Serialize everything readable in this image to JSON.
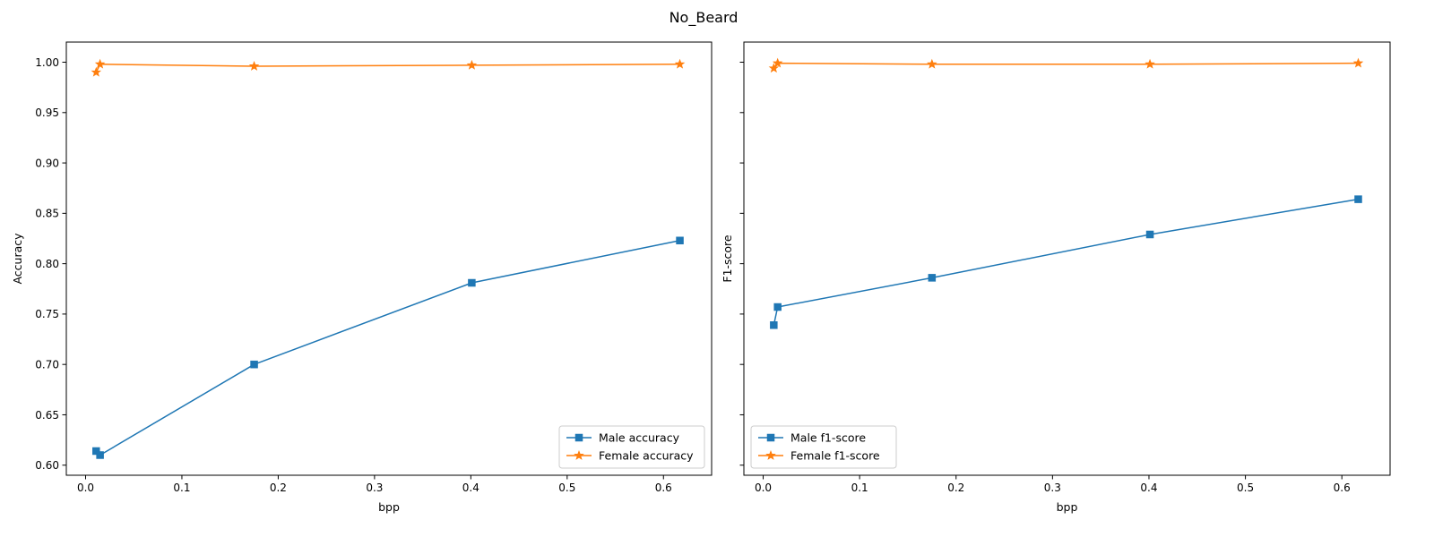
{
  "figure": {
    "title": "No_Beard"
  },
  "chart_data": [
    {
      "type": "line",
      "title": "",
      "xlabel": "bpp",
      "ylabel": "Accuracy",
      "xlim": [
        -0.02,
        0.65
      ],
      "ylim": [
        0.59,
        1.02
      ],
      "xticks": [
        0.0,
        0.1,
        0.2,
        0.3,
        0.4,
        0.5,
        0.6
      ],
      "yticks": [
        0.6,
        0.65,
        0.7,
        0.75,
        0.8,
        0.85,
        0.9,
        0.95,
        1.0
      ],
      "xtick_labels": [
        "0.0",
        "0.1",
        "0.2",
        "0.3",
        "0.4",
        "0.5",
        "0.6"
      ],
      "ytick_labels": [
        "0.60",
        "0.65",
        "0.70",
        "0.75",
        "0.80",
        "0.85",
        "0.90",
        "0.95",
        "1.00"
      ],
      "show_yticklabels": true,
      "grid": false,
      "legend_position": "lower-right",
      "series": [
        {
          "name": "Male accuracy",
          "marker": "square",
          "color": "#1f77b4",
          "x": [
            0.011,
            0.015,
            0.175,
            0.401,
            0.617
          ],
          "y": [
            0.614,
            0.61,
            0.7,
            0.781,
            0.823
          ]
        },
        {
          "name": "Female accuracy",
          "marker": "star",
          "color": "#ff7f0e",
          "x": [
            0.011,
            0.015,
            0.175,
            0.401,
            0.617
          ],
          "y": [
            0.99,
            0.998,
            0.996,
            0.997,
            0.998
          ]
        }
      ]
    },
    {
      "type": "line",
      "title": "",
      "xlabel": "bpp",
      "ylabel": "F1-score",
      "xlim": [
        -0.02,
        0.65
      ],
      "ylim": [
        0.59,
        1.02
      ],
      "xticks": [
        0.0,
        0.1,
        0.2,
        0.3,
        0.4,
        0.5,
        0.6
      ],
      "yticks": [
        0.6,
        0.65,
        0.7,
        0.75,
        0.8,
        0.85,
        0.9,
        0.95,
        1.0
      ],
      "xtick_labels": [
        "0.0",
        "0.1",
        "0.2",
        "0.3",
        "0.4",
        "0.5",
        "0.6"
      ],
      "ytick_labels": [
        "0.60",
        "0.65",
        "0.70",
        "0.75",
        "0.80",
        "0.85",
        "0.90",
        "0.95",
        "1.00"
      ],
      "show_yticklabels": false,
      "grid": false,
      "legend_position": "lower-left",
      "series": [
        {
          "name": "Male f1-score",
          "marker": "square",
          "color": "#1f77b4",
          "x": [
            0.011,
            0.015,
            0.175,
            0.401,
            0.617
          ],
          "y": [
            0.739,
            0.757,
            0.786,
            0.829,
            0.864
          ]
        },
        {
          "name": "Female f1-score",
          "marker": "star",
          "color": "#ff7f0e",
          "x": [
            0.011,
            0.015,
            0.175,
            0.401,
            0.617
          ],
          "y": [
            0.994,
            0.999,
            0.998,
            0.998,
            0.999
          ]
        }
      ]
    }
  ]
}
